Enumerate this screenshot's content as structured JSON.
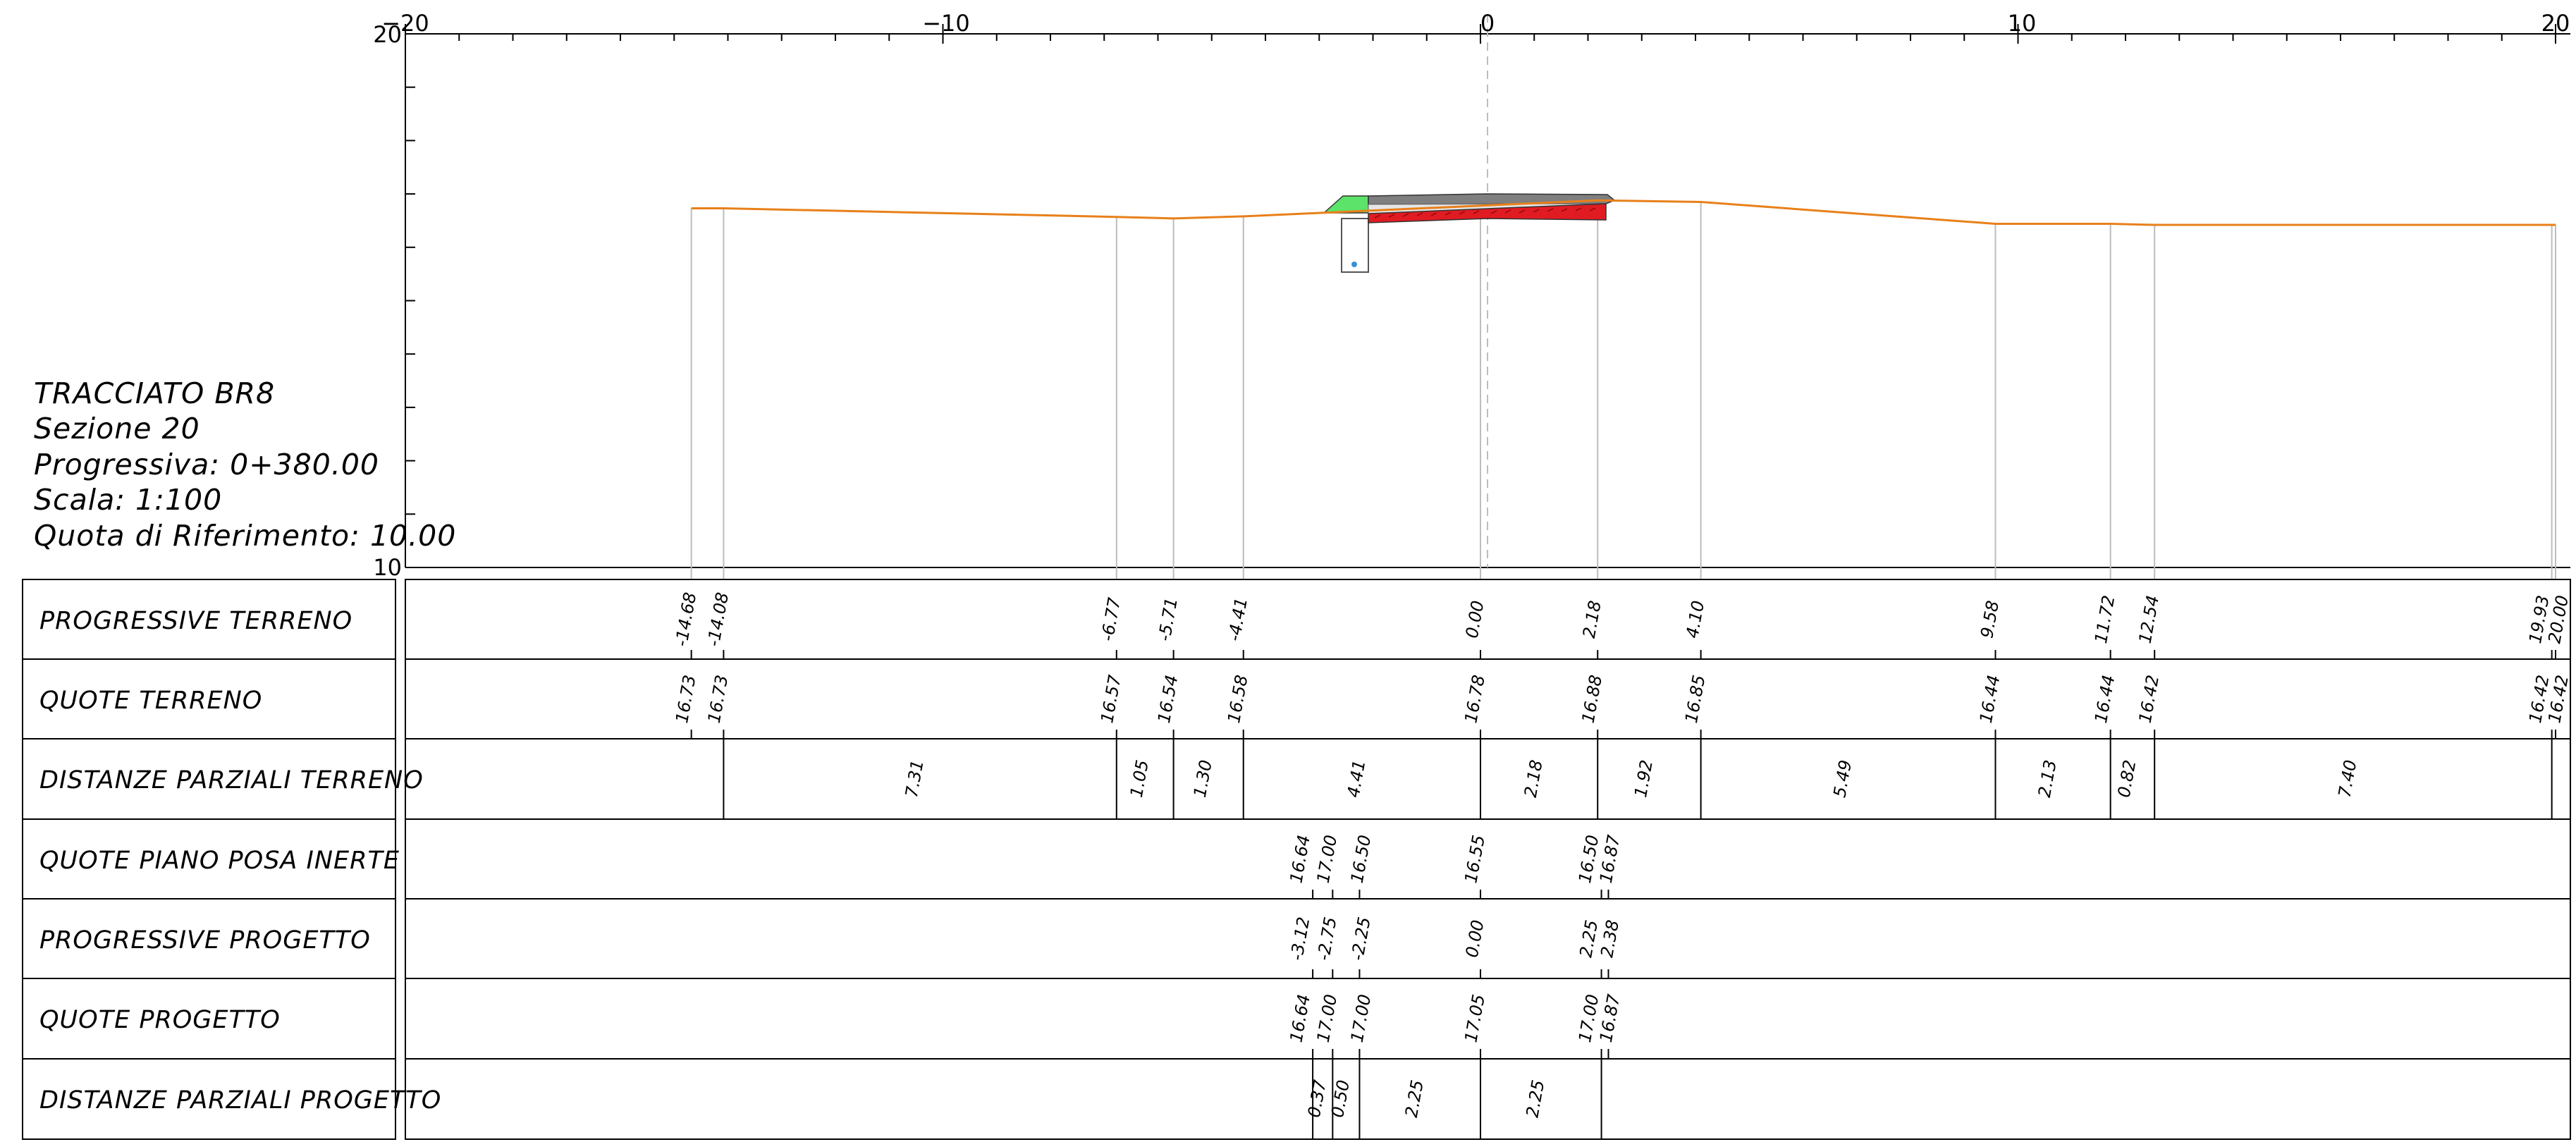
{
  "section_info": {
    "alignment": "TRACCIATO BR8",
    "section": "Sezione 20",
    "chainage": "Progressiva: 0+380.00",
    "scale": "Scala: 1:100",
    "reference_level": "Quota di Riferimento: 10.00"
  },
  "axes": {
    "x_ticks": [
      "−20",
      "−10",
      "0",
      "10",
      "20"
    ],
    "y_ticks": [
      "20",
      "10"
    ]
  },
  "colors": {
    "terrain": "#e8801a",
    "fill_red": "#e11b22",
    "fill_green": "#5ce36a",
    "grey_layer": "#808080",
    "drain_dot": "#3a8fd6",
    "ordinate": "#bdbdbd"
  },
  "chart_data": {
    "type": "line",
    "title": "",
    "xlim": [
      -20,
      20
    ],
    "ylim": [
      10,
      20
    ],
    "terrain_profile": {
      "x": [
        -14.68,
        -14.08,
        -6.77,
        -5.71,
        -4.41,
        0.0,
        2.18,
        4.1,
        9.58,
        11.72,
        12.54,
        19.93,
        20.0
      ],
      "y": [
        16.73,
        16.73,
        16.57,
        16.54,
        16.58,
        16.78,
        16.88,
        16.85,
        16.44,
        16.44,
        16.42,
        16.42,
        16.42
      ]
    },
    "design_profile": {
      "x": [
        -3.12,
        -2.75,
        -2.25,
        0.0,
        2.25,
        2.38
      ],
      "y": [
        16.64,
        17.0,
        17.0,
        17.05,
        17.0,
        16.87
      ]
    },
    "bedding_profile": {
      "x": [
        -3.12,
        -2.75,
        -2.25,
        0.0,
        2.25,
        2.38
      ],
      "y": [
        16.64,
        17.0,
        16.5,
        16.55,
        16.5,
        16.87
      ]
    }
  },
  "table": {
    "rows": [
      {
        "label": "PROGRESSIVE TERRENO",
        "values": [
          "-14.68",
          "-14.08",
          "-6.77",
          "-5.71",
          "-4.41",
          "0.00",
          "2.18",
          "4.10",
          "9.58",
          "11.72",
          "12.54",
          "19.93",
          "20.00"
        ]
      },
      {
        "label": "QUOTE TERRENO",
        "values": [
          "16.73",
          "16.73",
          "16.57",
          "16.54",
          "16.58",
          "16.78",
          "16.88",
          "16.85",
          "16.44",
          "16.44",
          "16.42",
          "16.42",
          "16.42"
        ]
      },
      {
        "label": "DISTANZE PARZIALI TERRENO",
        "values": [
          "7.31",
          "1.05",
          "1.30",
          "4.41",
          "2.18",
          "1.92",
          "5.49",
          "2.13",
          "0.82",
          "7.40"
        ]
      },
      {
        "label": "QUOTE PIANO POSA INERTE",
        "values": [
          "16.64",
          "17.00",
          "16.50",
          "16.55",
          "16.50",
          "16.87"
        ]
      },
      {
        "label": "PROGRESSIVE PROGETTO",
        "values": [
          "-3.12",
          "-2.75",
          "-2.25",
          "0.00",
          "2.25",
          "2.38"
        ]
      },
      {
        "label": "QUOTE PROGETTO",
        "values": [
          "16.64",
          "17.00",
          "17.00",
          "17.05",
          "17.00",
          "16.87"
        ]
      },
      {
        "label": "DISTANZE PARZIALI PROGETTO",
        "values": [
          "0.37",
          "0.50",
          "2.25",
          "2.25"
        ]
      }
    ]
  }
}
